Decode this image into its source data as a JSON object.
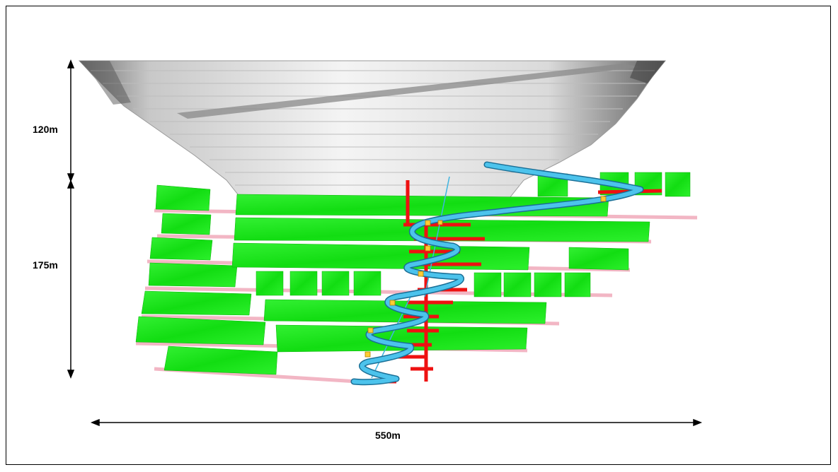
{
  "dimensions": {
    "pit_depth_label": "120m",
    "underground_depth_label": "175m",
    "width_label": "550m"
  },
  "legend_colors": {
    "open_pit": "#e6e6e6",
    "stopes": "#22ee22",
    "level_drives": "#f2b6c4",
    "decline_ramp": "#3fb4e0",
    "shaft_and_crosscuts": "#ee1111",
    "access_points": "#ffcc33"
  }
}
